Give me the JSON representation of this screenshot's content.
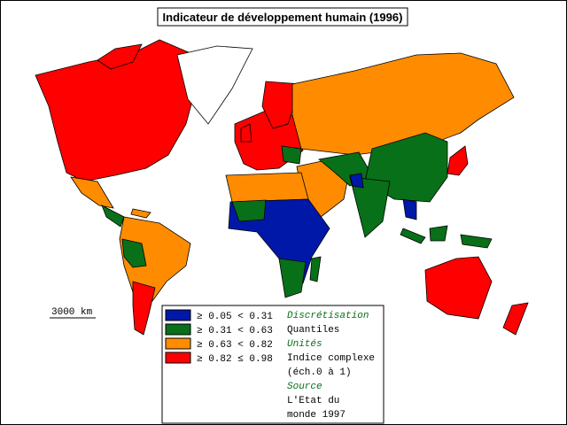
{
  "title": "Indicateur de développement humain (1996)",
  "scale_bar": "3000 km",
  "legend": {
    "items": [
      {
        "label": "≥ 0.05 < 0.31",
        "color": "#0018a8"
      },
      {
        "label": "≥ 0.31 < 0.63",
        "color": "#087018"
      },
      {
        "label": "≥ 0.63 < 0.82",
        "color": "#ff8c00"
      },
      {
        "label": "≥ 0.82 ≤ 0.98",
        "color": "#ff0000"
      }
    ]
  },
  "notes": [
    {
      "heading": "Discrétisation",
      "lines": [
        "Quantiles"
      ]
    },
    {
      "heading": "Unités",
      "lines": [
        "Indice complexe",
        "(éch.0 à 1)"
      ]
    },
    {
      "heading": "Source",
      "lines": [
        "L'Etat du",
        "monde 1997"
      ]
    }
  ]
}
